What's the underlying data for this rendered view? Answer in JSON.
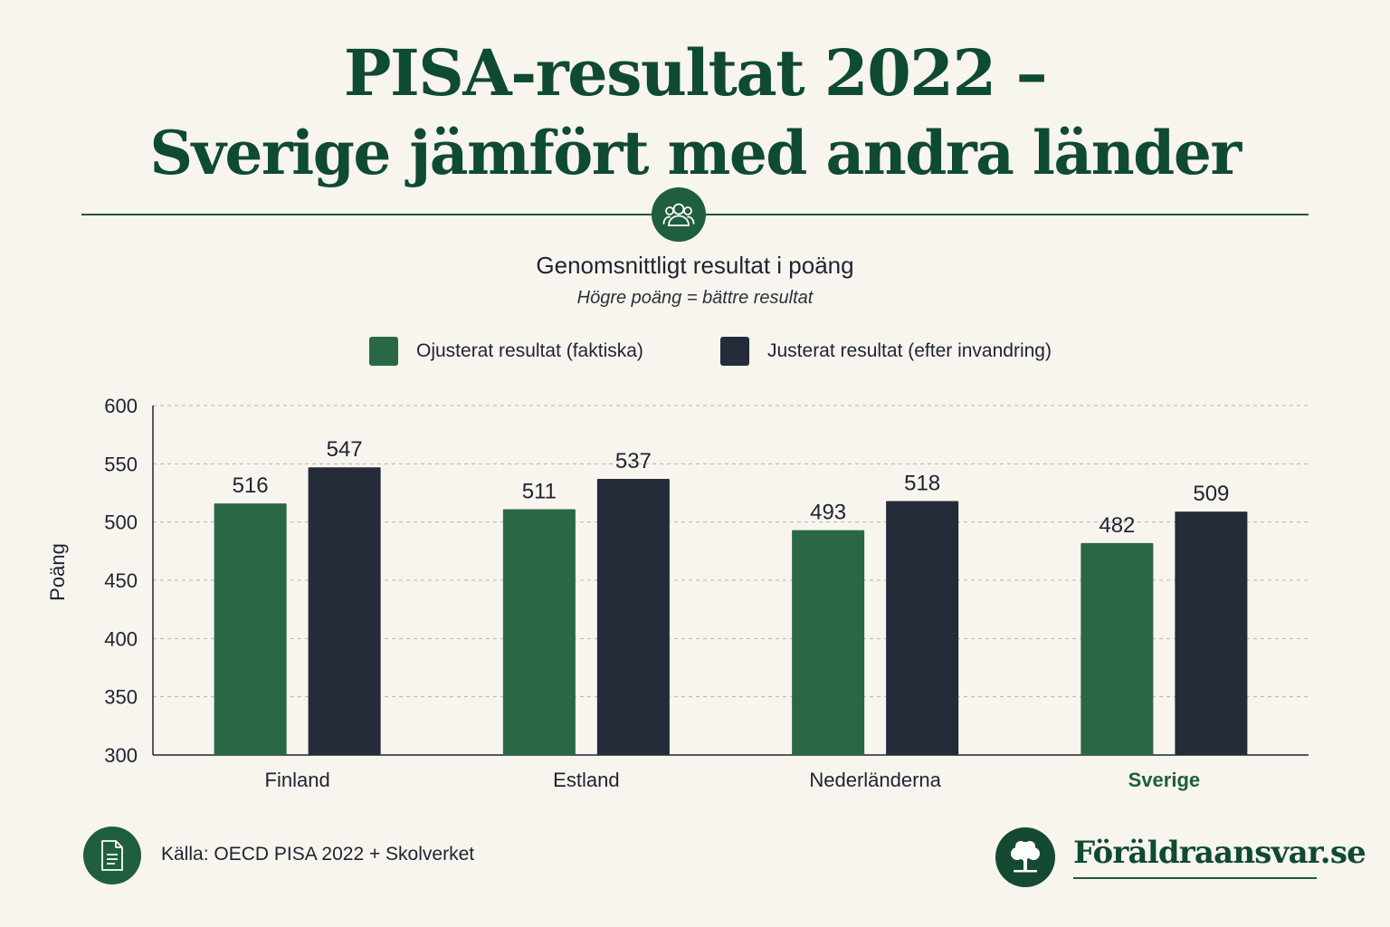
{
  "header": {
    "title_line1": "PISA-resultat 2022 –",
    "title_line2": "Sverige jämfört med andra länder",
    "subtitle": "Genomsnittligt resultat i poäng",
    "note": "Högre poäng = bättre resultat",
    "icon": "people-icon"
  },
  "legend": [
    {
      "label": "Ojusterat resultat (faktiska)",
      "color": "#2a6845"
    },
    {
      "label": "Justerat resultat (efter invandring)",
      "color": "#232c38"
    }
  ],
  "chart_data": {
    "type": "bar",
    "categories": [
      "Finland",
      "Estland",
      "Nederländerna",
      "Sverige"
    ],
    "series": [
      {
        "name": "Ojusterat resultat (faktiska)",
        "values": [
          516,
          511,
          493,
          482
        ],
        "color": "#2a6845"
      },
      {
        "name": "Justerat resultat (efter invandring)",
        "values": [
          547,
          537,
          518,
          509
        ],
        "color": "#232c38"
      }
    ],
    "ylabel": "Poäng",
    "xlabel": "",
    "ylim": [
      300,
      600
    ],
    "yticks": [
      300,
      350,
      400,
      450,
      500,
      550,
      600
    ],
    "grid": true,
    "highlight_category": "Sverige",
    "highlight_color": "#1f5e3e",
    "legend_position": "top"
  },
  "footer": {
    "source": "Källa: OECD PISA 2022 + Skolverket",
    "source_icon": "document-icon",
    "brand": "Föräldraansvar.se",
    "brand_icon": "tree-icon"
  }
}
